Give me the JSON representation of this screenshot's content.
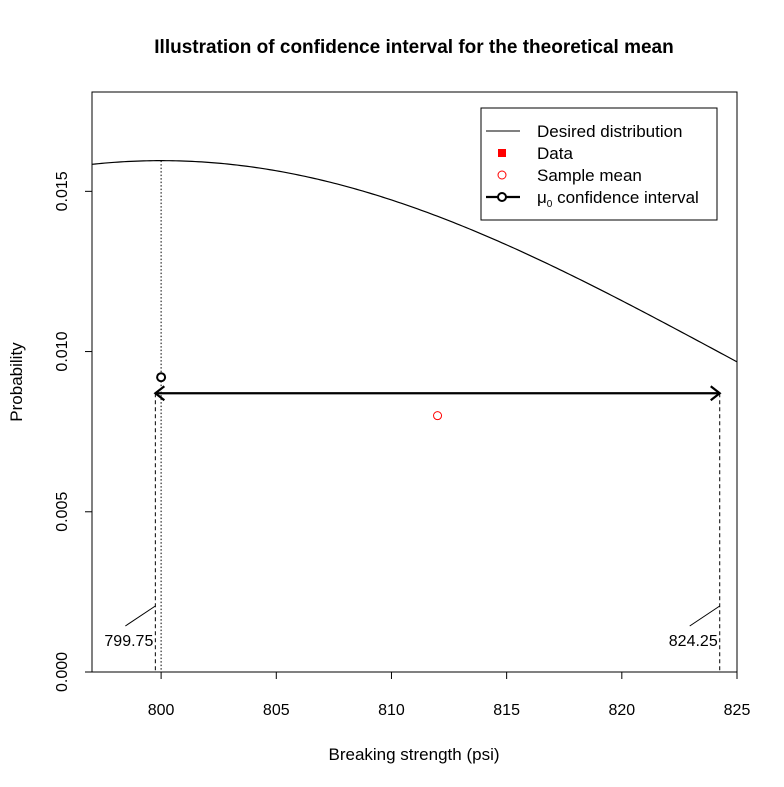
{
  "chart_data": {
    "type": "line",
    "title": "Illustration of confidence interval for the theoretical mean",
    "xlabel": "Breaking strength (psi)",
    "ylabel": "Probability",
    "xlim": [
      797,
      825
    ],
    "ylim": [
      0,
      0.0181
    ],
    "x_ticks": [
      800,
      805,
      810,
      815,
      820,
      825
    ],
    "y_ticks": [
      0.0,
      0.005,
      0.01,
      0.015
    ],
    "y_tick_labels": [
      "0.000",
      "0.005",
      "0.010",
      "0.015"
    ],
    "distribution": {
      "name": "Desired distribution",
      "mean": 800,
      "sd": 25,
      "color": "#000000"
    },
    "mu0_line": {
      "x": 800
    },
    "sample_mean": {
      "name": "Sample mean",
      "x": 812,
      "y": 0.008,
      "color": "#ff0000"
    },
    "mu0_point": {
      "x": 800,
      "y": 0.0092
    },
    "confidence_interval": {
      "name": "μ0 confidence interval",
      "lower": 799.75,
      "upper": 824.25,
      "y": 0.0087,
      "lower_label": "799.75",
      "upper_label": "824.25"
    },
    "legend": {
      "position": "top-right",
      "entries": [
        {
          "label": "Desired distribution",
          "symbol": "line",
          "color": "#000000"
        },
        {
          "label": "Data",
          "symbol": "filled-square",
          "color": "#ff0000"
        },
        {
          "label": "Sample mean",
          "symbol": "open-circle",
          "color": "#ff0000"
        },
        {
          "label_main": "μ",
          "label_sub": "0",
          "label_rest": " confidence interval",
          "symbol": "line-circle",
          "color": "#000000"
        }
      ]
    }
  }
}
